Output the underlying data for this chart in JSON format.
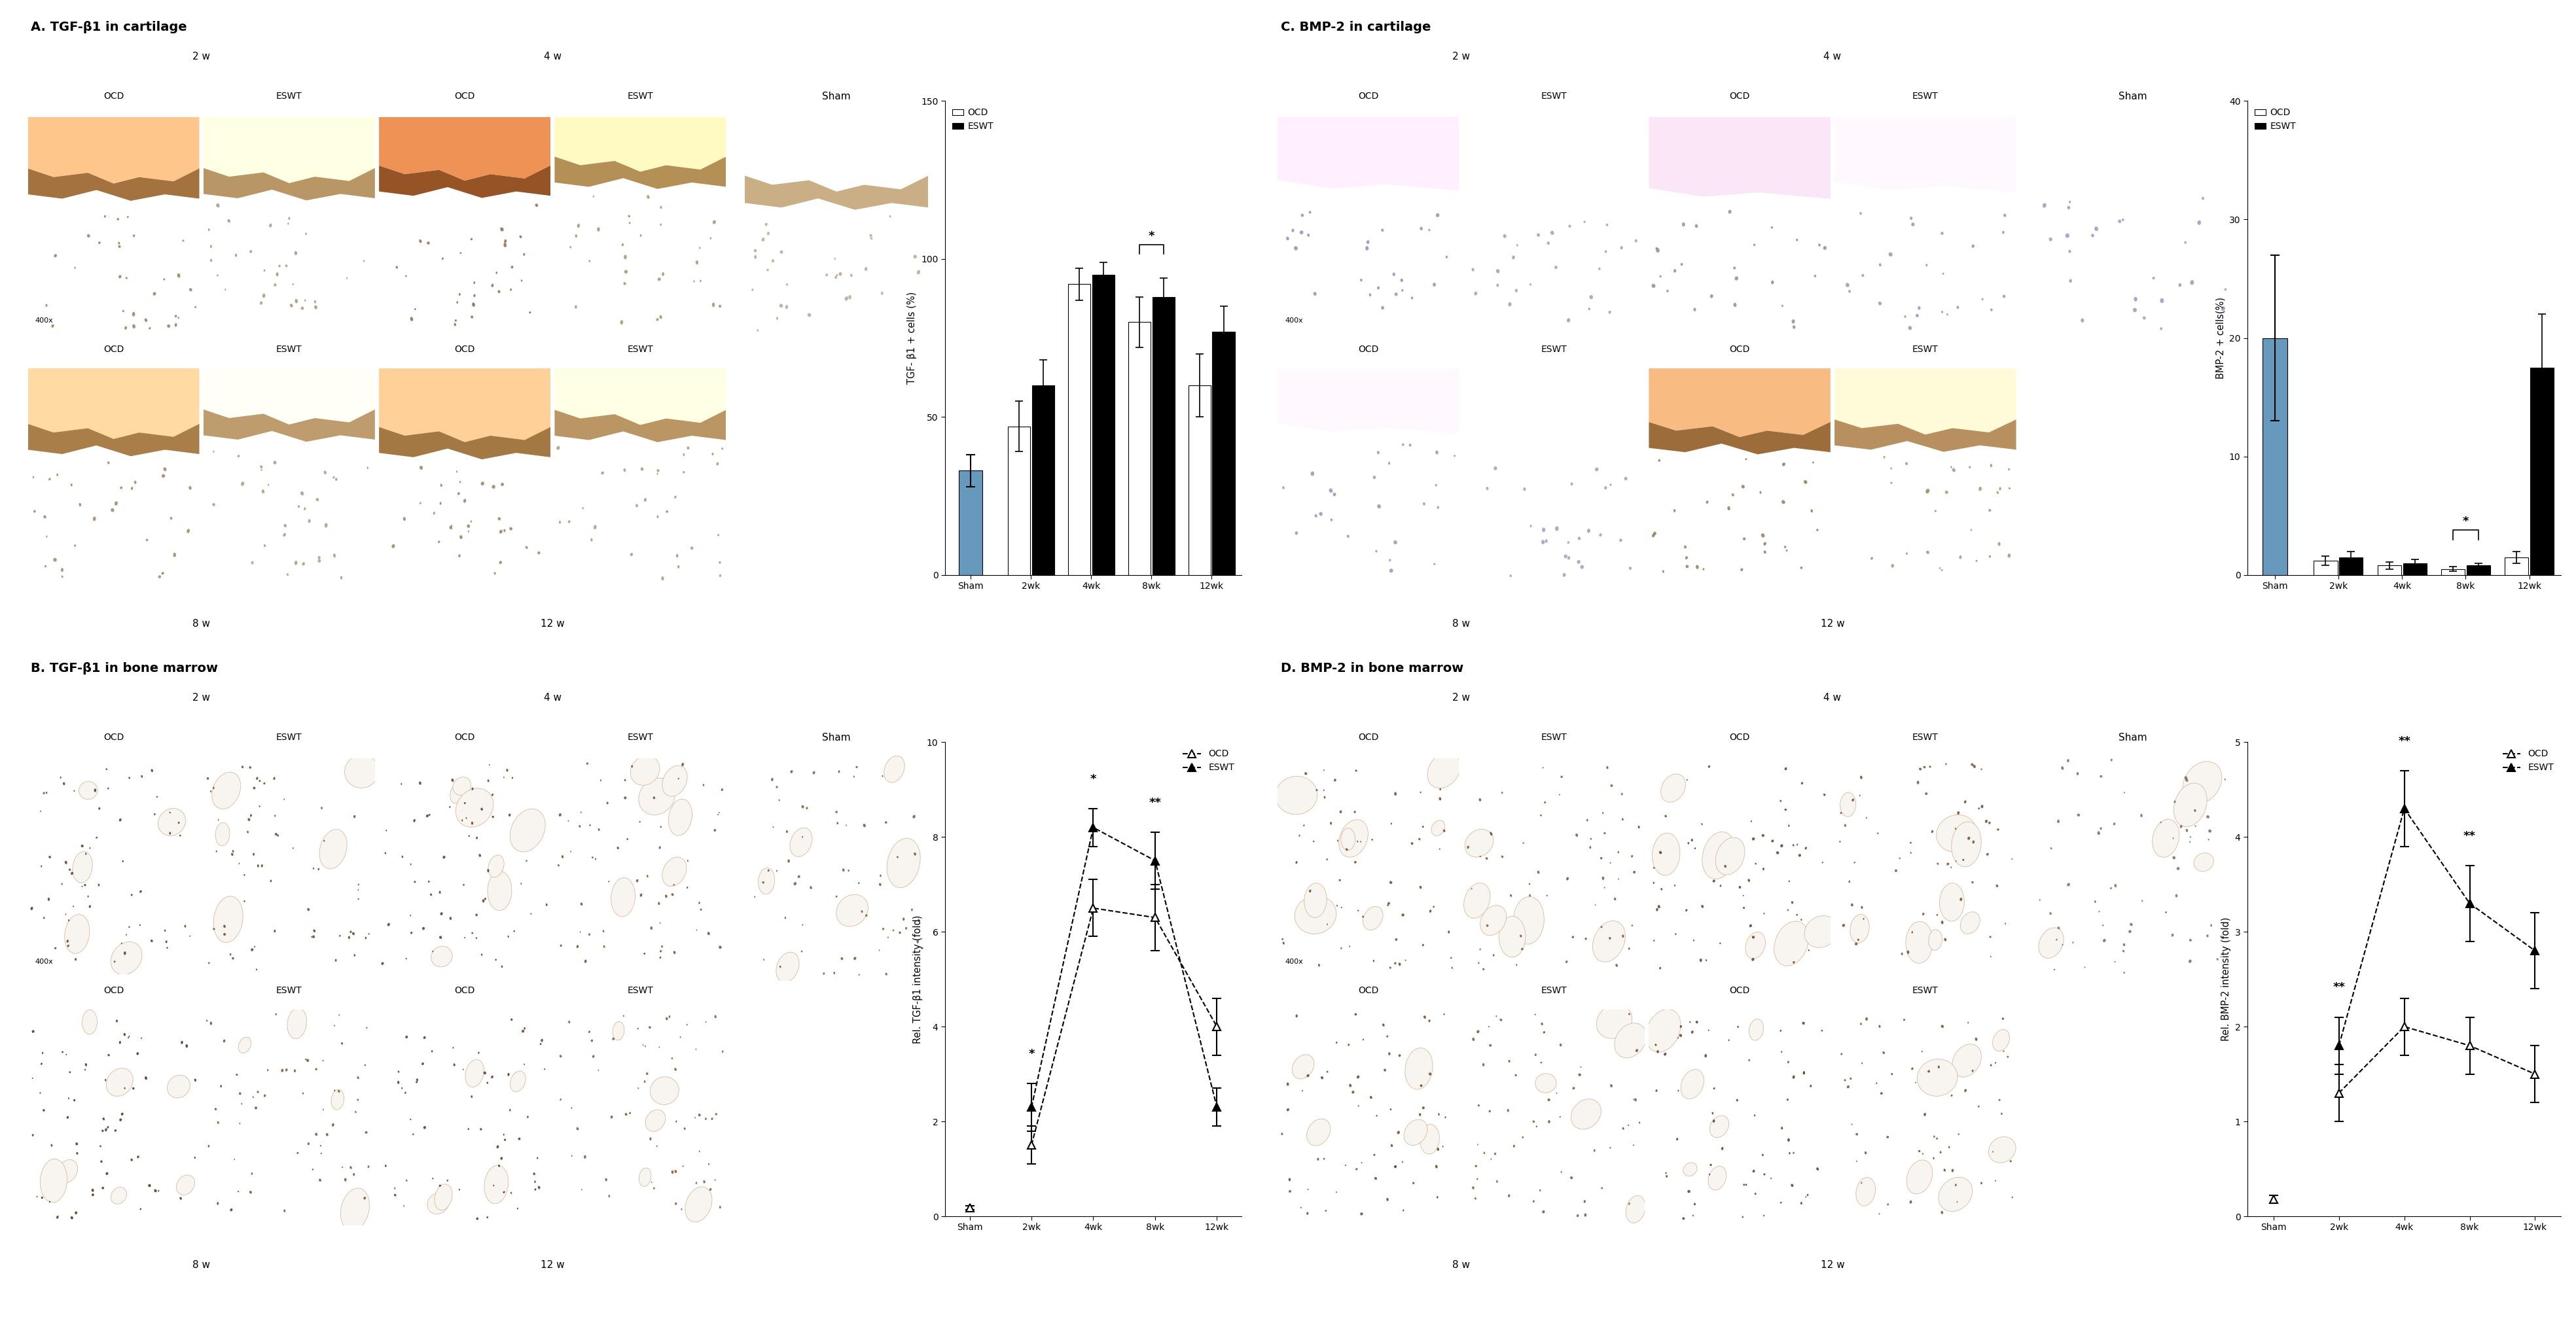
{
  "panel_titles": {
    "A": "A. TGF-β1 in cartilage",
    "B": "B. TGF-β1 in bone marrow",
    "C": "C. BMP-2 in cartilage",
    "D": "D. BMP-2 in bone marrow"
  },
  "chart_A": {
    "ylabel": "TGF- β1 + cells (%)",
    "categories": [
      "Sham",
      "2wk",
      "4wk",
      "8wk",
      "12wk"
    ],
    "sham_mean": 33,
    "sham_err": 5,
    "ocd_means": [
      47,
      92,
      80,
      60
    ],
    "ocd_errs": [
      8,
      5,
      8,
      10
    ],
    "eswt_means": [
      60,
      95,
      88,
      77
    ],
    "eswt_errs": [
      8,
      4,
      6,
      8
    ],
    "ylim": [
      0,
      150
    ],
    "yticks": [
      0,
      50,
      100,
      150
    ],
    "sig_at_idx": [
      3
    ],
    "sig_labels": [
      "*"
    ]
  },
  "chart_B": {
    "ylabel": "Rel. TGF-β1 intensity (fold)",
    "categories": [
      "Sham",
      "2wk",
      "4wk",
      "8wk",
      "12wk"
    ],
    "sham_mean": 0.18,
    "sham_err": 0.04,
    "ocd_means": [
      1.5,
      6.5,
      6.3,
      4.0
    ],
    "ocd_errs": [
      0.4,
      0.6,
      0.7,
      0.6
    ],
    "eswt_means": [
      2.3,
      8.2,
      7.5,
      2.3
    ],
    "eswt_errs": [
      0.5,
      0.4,
      0.6,
      0.4
    ],
    "ylim": [
      0,
      10
    ],
    "yticks": [
      0,
      2,
      4,
      6,
      8,
      10
    ],
    "sig_at_idx": [
      1,
      2,
      3
    ],
    "sig_labels": [
      "*",
      "*",
      "**"
    ]
  },
  "chart_C": {
    "ylabel": "BMP-2 + cells(%)",
    "categories": [
      "Sham",
      "2wk",
      "4wk",
      "8wk",
      "12wk"
    ],
    "sham_mean": 20,
    "sham_err": 7,
    "ocd_means": [
      1.2,
      0.8,
      0.5,
      1.5
    ],
    "ocd_errs": [
      0.4,
      0.3,
      0.2,
      0.5
    ],
    "eswt_means": [
      1.5,
      1.0,
      0.8,
      17.5
    ],
    "eswt_errs": [
      0.5,
      0.3,
      0.2,
      4.5
    ],
    "ylim": [
      0,
      40
    ],
    "yticks": [
      0,
      10,
      20,
      30,
      40
    ],
    "sig_at_idx": [
      3
    ],
    "sig_labels": [
      "*"
    ]
  },
  "chart_D": {
    "ylabel": "Rel. BMP-2 intensity (fold)",
    "categories": [
      "Sham",
      "2wk",
      "4wk",
      "8wk",
      "12wk"
    ],
    "sham_mean": 0.18,
    "sham_err": 0.04,
    "ocd_means": [
      1.3,
      2.0,
      1.8,
      1.5
    ],
    "ocd_errs": [
      0.3,
      0.3,
      0.3,
      0.3
    ],
    "eswt_means": [
      1.8,
      4.3,
      3.3,
      2.8
    ],
    "eswt_errs": [
      0.3,
      0.4,
      0.4,
      0.4
    ],
    "ylim": [
      0,
      5
    ],
    "yticks": [
      0,
      1,
      2,
      3,
      4,
      5
    ],
    "sig_at_idx": [
      1,
      2,
      3
    ],
    "sig_labels": [
      "**",
      "**",
      "**"
    ]
  },
  "sham_bar_color": "#6699bb",
  "img_A_top": [
    "#c09868",
    "#d8c8a8",
    "#b07040",
    "#d4c090"
  ],
  "img_A_bot": [
    "#c8a878",
    "#e0d0b8",
    "#c0a070",
    "#dcc8a8"
  ],
  "img_A_sham": "#ede8e0",
  "img_B_top": [
    "#9a6020",
    "#b88040",
    "#a06828",
    "#c09048"
  ],
  "img_B_bot": [
    "#7a4810",
    "#c8986c",
    "#986030",
    "#d8a870"
  ],
  "img_B_sham": "#c8a870",
  "img_C_top": [
    "#d8d0e8",
    "#ece8f4",
    "#d0c8e0",
    "#e0d8ec"
  ],
  "img_C_bot": [
    "#e0d8ec",
    "#f0ecf8",
    "#b89060",
    "#d8c0a0"
  ],
  "img_C_sham": "#e8e4f4",
  "img_D_top": [
    "#b88040",
    "#d0a860",
    "#a07030",
    "#c89050"
  ],
  "img_D_bot": [
    "#b88040",
    "#d0a860",
    "#a07030",
    "#c89050"
  ],
  "img_D_sham": "#dcd8c8"
}
